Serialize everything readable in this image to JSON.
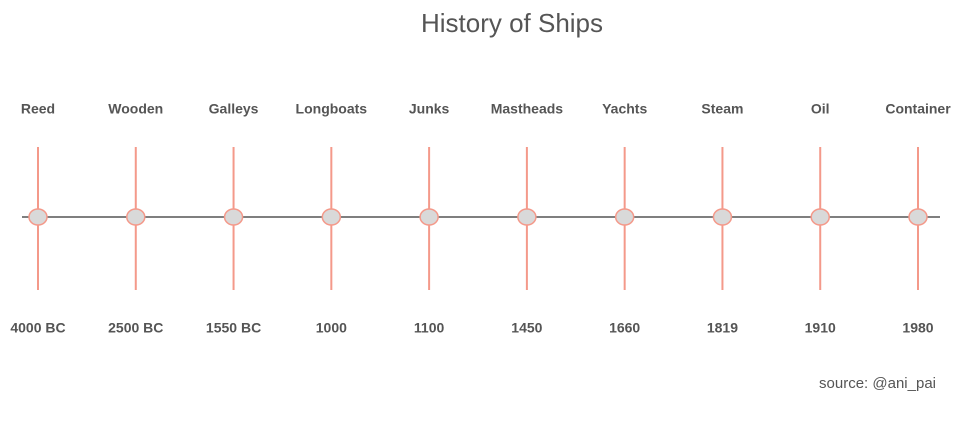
{
  "chart_data": {
    "type": "timeline",
    "title": "History of Ships",
    "categories": [
      "Reed",
      "Wooden",
      "Galleys",
      "Longboats",
      "Junks",
      "Mastheads",
      "Yachts",
      "Steam",
      "Oil",
      "Container"
    ],
    "dates": [
      "4000 BC",
      "2500 BC",
      "1550 BC",
      "1000",
      "1100",
      "1450",
      "1660",
      "1819",
      "1910",
      "1980"
    ],
    "source": "source: @ani_pai",
    "line_color": "#555555",
    "marker_color": "#f4998a",
    "marker_fill": "#d9d9d9"
  }
}
